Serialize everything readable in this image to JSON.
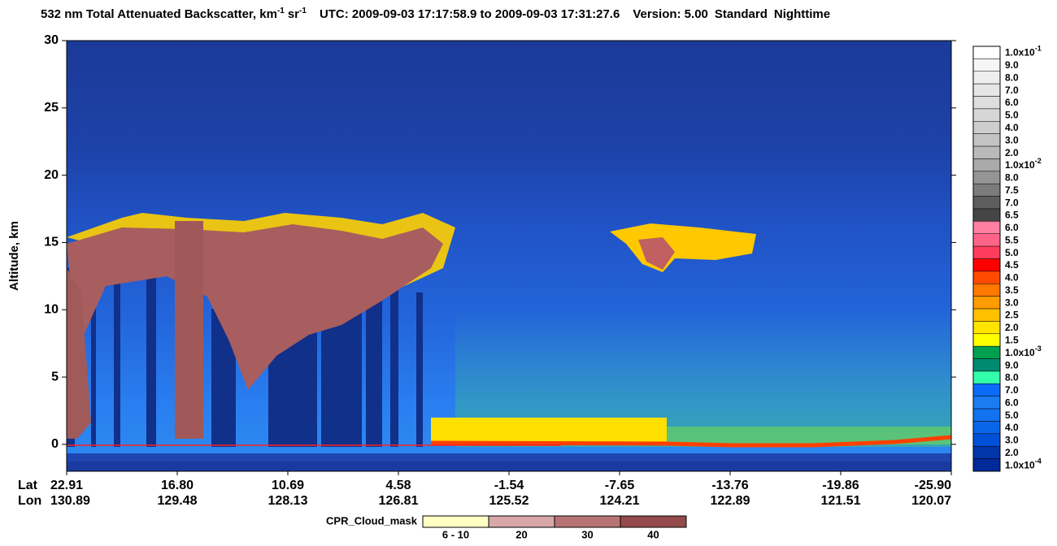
{
  "chart_data": {
    "type": "curtain",
    "title": {
      "main": "532 nm Total Attenuated Backscatter, km",
      "sup1": "-1",
      "unit2": "sr",
      "sup2": "-1",
      "time": "UTC:  2009-09-03 17:17:58.9  to  2009-09-03 17:31:27.6",
      "version": "Version: 5.00",
      "mode": "Standard",
      "daynight": "Nighttime"
    },
    "y_label": "Altitude, km",
    "ylim": [
      -2,
      30
    ],
    "yticks": [
      0,
      5,
      10,
      15,
      20,
      25,
      30
    ],
    "x_row_labels": [
      "Lat",
      "Lon"
    ],
    "lat_labels": [
      "22.91",
      "16.80",
      "10.69",
      "4.58",
      "-1.54",
      "-7.65",
      "-13.76",
      "-19.86",
      "-25.90"
    ],
    "lon_labels": [
      "130.89",
      "129.48",
      "128.13",
      "126.81",
      "125.52",
      "124.21",
      "122.89",
      "121.51",
      "120.07"
    ],
    "color_scale": [
      {
        "label": "1.0x10",
        "sup": "-1",
        "color": "#ffffff"
      },
      {
        "label": "9.0",
        "color": "#f6f6f6"
      },
      {
        "label": "8.0",
        "color": "#eeeeee"
      },
      {
        "label": "7.0",
        "color": "#e6e6e6"
      },
      {
        "label": "6.0",
        "color": "#dedede"
      },
      {
        "label": "5.0",
        "color": "#d6d6d6"
      },
      {
        "label": "4.0",
        "color": "#cecece"
      },
      {
        "label": "3.0",
        "color": "#c4c4c4"
      },
      {
        "label": "2.0",
        "color": "#bababa"
      },
      {
        "label": "1.0x10",
        "sup": "-2",
        "color": "#aaaaaa"
      },
      {
        "label": "8.0",
        "color": "#959595"
      },
      {
        "label": "7.5",
        "color": "#7c7c7c"
      },
      {
        "label": "7.0",
        "color": "#5e5e5e"
      },
      {
        "label": "6.5",
        "color": "#454545"
      },
      {
        "label": "6.0",
        "color": "#ff80a0"
      },
      {
        "label": "5.5",
        "color": "#ff6488"
      },
      {
        "label": "5.0",
        "color": "#ff3c5c"
      },
      {
        "label": "4.5",
        "color": "#ff0000"
      },
      {
        "label": "4.0",
        "color": "#ff4a00"
      },
      {
        "label": "3.5",
        "color": "#ff7800"
      },
      {
        "label": "3.0",
        "color": "#ff9c00"
      },
      {
        "label": "2.5",
        "color": "#ffc000"
      },
      {
        "label": "2.0",
        "color": "#ffe400"
      },
      {
        "label": "1.5",
        "color": "#ffff00"
      },
      {
        "label": "1.0x10",
        "sup": "-3",
        "color": "#00a050"
      },
      {
        "label": "9.0",
        "color": "#008a70"
      },
      {
        "label": "8.0",
        "color": "#33ffaa"
      },
      {
        "label": "7.0",
        "color": "#0a6cf8"
      },
      {
        "label": "6.0",
        "color": "#1a7cf0"
      },
      {
        "label": "5.0",
        "color": "#1272f0"
      },
      {
        "label": "4.0",
        "color": "#0a66e8"
      },
      {
        "label": "3.0",
        "color": "#0050d8"
      },
      {
        "label": "2.0",
        "color": "#0036a8"
      },
      {
        "label": "1.0x10",
        "sup": "-4",
        "color": "#002a98"
      }
    ],
    "cloud_mask": {
      "label": "CPR_Cloud_mask",
      "entries": [
        {
          "label": "6 - 10",
          "color": "#ffffc4"
        },
        {
          "label": "20",
          "color": "#d8a8a8"
        },
        {
          "label": "30",
          "color": "#b87474"
        },
        {
          "label": "40",
          "color": "#944a4a"
        }
      ]
    }
  }
}
